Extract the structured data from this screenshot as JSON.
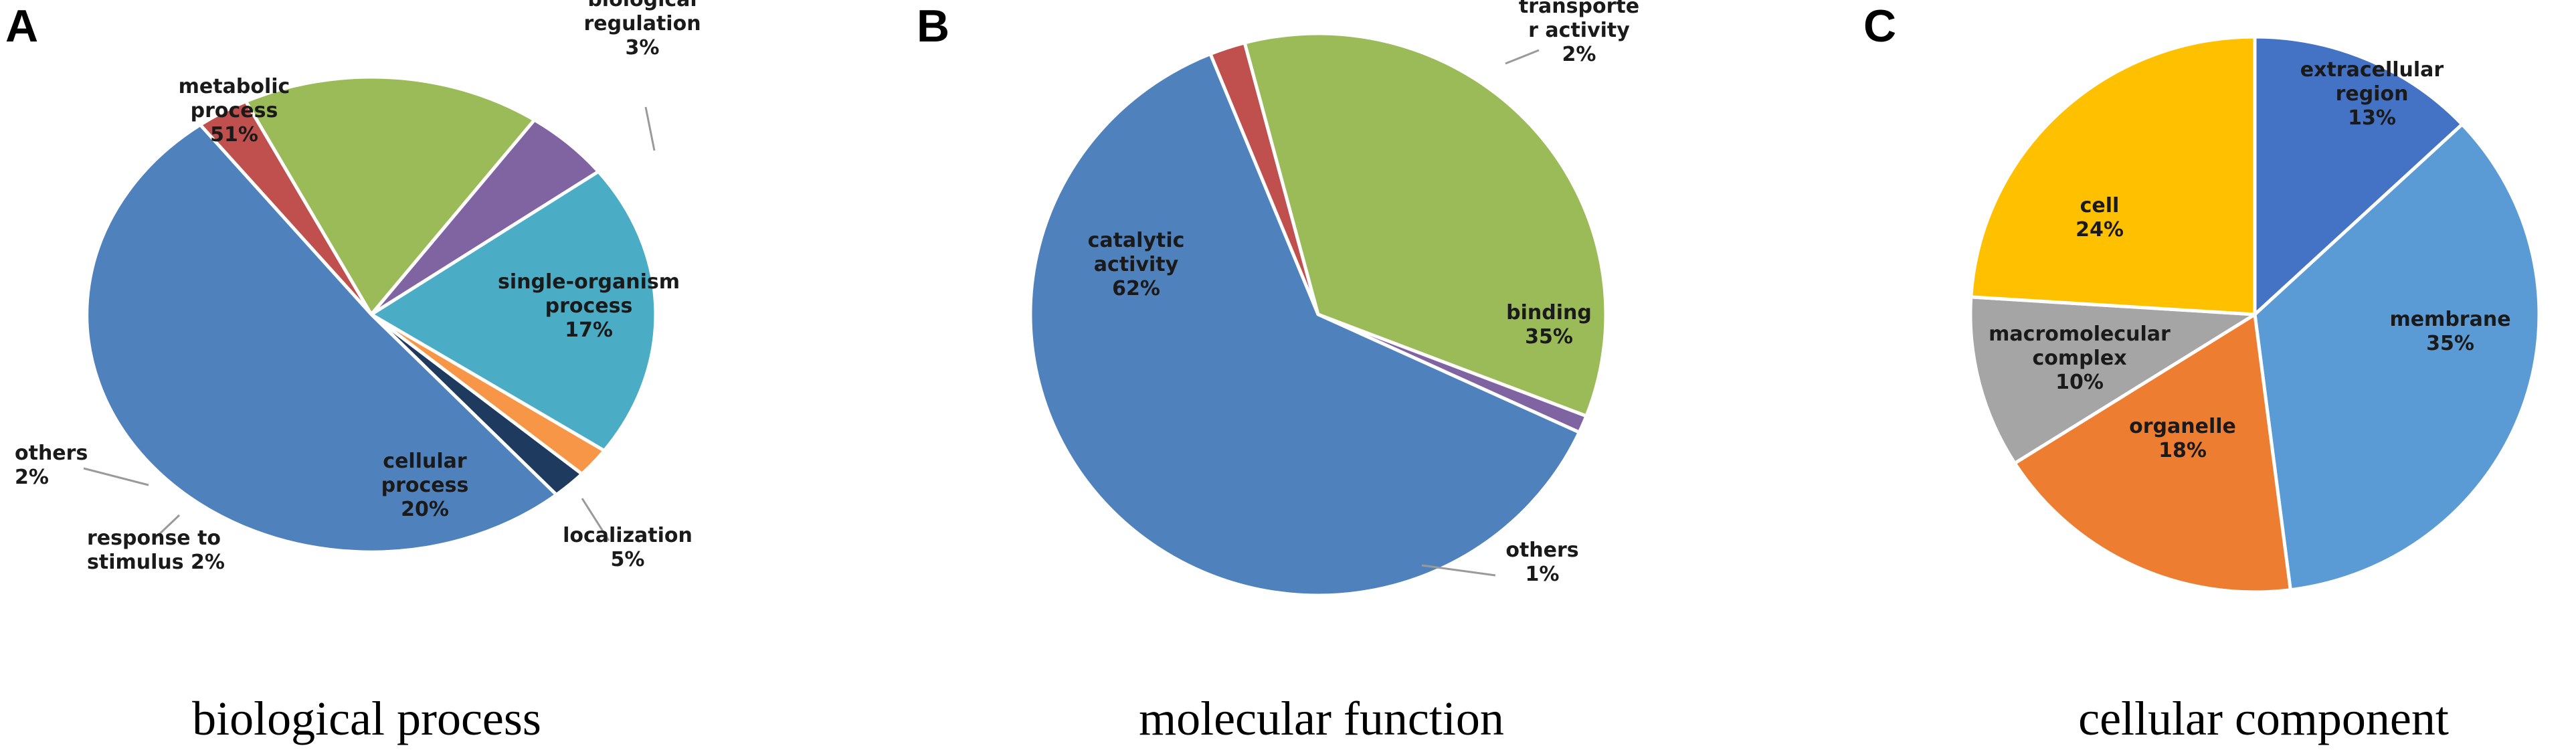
{
  "chart_data": [
    {
      "panel": "A",
      "type": "pie",
      "title": "biological process",
      "slices": [
        {
          "label": [
            "biological",
            "regulation",
            "3%"
          ],
          "value": 3,
          "color": "#c0504d"
        },
        {
          "label": [
            "single-organism",
            "process",
            "17%"
          ],
          "value": 17,
          "color": "#9bbb59"
        },
        {
          "label": [
            "localization",
            "5%"
          ],
          "value": 5,
          "color": "#8064a2"
        },
        {
          "label": [
            "cellular",
            "process",
            "20%"
          ],
          "value": 20,
          "color": "#4bacc6"
        },
        {
          "label": [
            "response to",
            "stimulus 2%"
          ],
          "value": 2,
          "color": "#f79646"
        },
        {
          "label": [
            "others",
            "2%"
          ],
          "value": 2,
          "color": "#1f3a5f"
        },
        {
          "label": [
            "metabolic",
            "process",
            "51%"
          ],
          "value": 51,
          "color": "#4f81bd"
        }
      ]
    },
    {
      "panel": "B",
      "type": "pie",
      "title": "molecular function",
      "slices": [
        {
          "label": [
            "transporte",
            "r activity",
            "2%"
          ],
          "value": 2,
          "color": "#c0504d"
        },
        {
          "label": [
            "binding",
            "35%"
          ],
          "value": 35,
          "color": "#9bbb59"
        },
        {
          "label": [
            "others",
            "1%"
          ],
          "value": 1,
          "color": "#8064a2"
        },
        {
          "label": [
            "catalytic",
            "activity",
            "62%"
          ],
          "value": 62,
          "color": "#4f81bd"
        }
      ]
    },
    {
      "panel": "C",
      "type": "pie",
      "title": "cellular component",
      "slices": [
        {
          "label": [
            "extracellular",
            "region",
            "13%"
          ],
          "value": 13,
          "color": "#4472c4"
        },
        {
          "label": [
            "membrane",
            "35%"
          ],
          "value": 35,
          "color": "#5b9bd5"
        },
        {
          "label": [
            "organelle",
            "18%"
          ],
          "value": 18,
          "color": "#ed7d31"
        },
        {
          "label": [
            "macromolecular",
            "complex",
            "10%"
          ],
          "value": 10,
          "color": "#a5a5a5"
        },
        {
          "label": [
            "cell",
            "24%"
          ],
          "value": 24,
          "color": "#ffc000"
        }
      ]
    }
  ]
}
